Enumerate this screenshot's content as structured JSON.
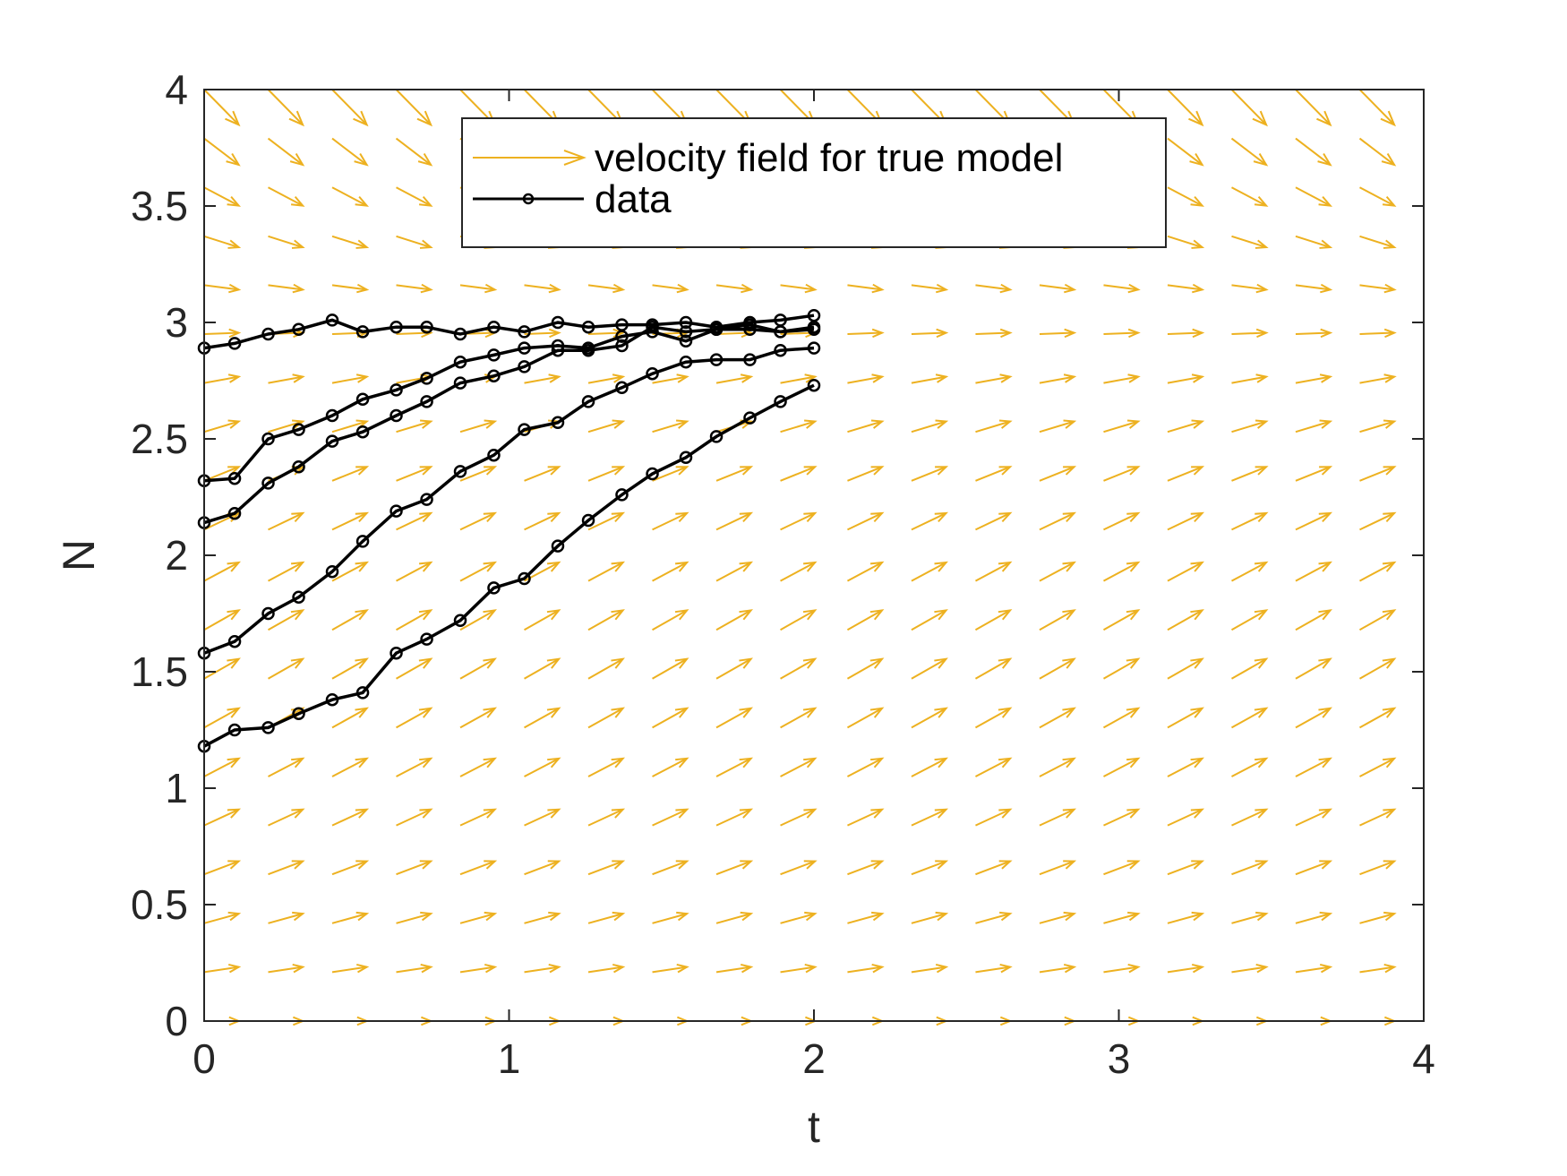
{
  "chart_data": {
    "type": "quiver-line",
    "title": "",
    "xlabel": "t",
    "ylabel": "N",
    "xlim": [
      0,
      4
    ],
    "ylim": [
      0,
      4
    ],
    "xticks": [
      "0",
      "1",
      "2",
      "3",
      "4"
    ],
    "yticks": [
      "0",
      "0.5",
      "1",
      "1.5",
      "2",
      "2.5",
      "3",
      "3.5",
      "4"
    ],
    "grid": false,
    "legend_position": "top-center",
    "legend": [
      {
        "label": "velocity field for true model",
        "kind": "arrow"
      },
      {
        "label": "data",
        "kind": "line-marker"
      }
    ],
    "velocity_field": {
      "model": "logistic",
      "growth_rate": 1.0,
      "carrying_capacity": 3.0,
      "t_values": [
        0,
        0.21,
        0.42,
        0.63,
        0.84,
        1.05,
        1.26,
        1.47,
        1.68,
        1.89,
        2.11,
        2.32,
        2.53,
        2.74,
        2.95,
        3.16,
        3.37,
        3.58,
        3.79
      ],
      "n_values": [
        0,
        0.21,
        0.42,
        0.63,
        0.84,
        1.05,
        1.26,
        1.47,
        1.68,
        1.89,
        2.11,
        2.32,
        2.53,
        2.74,
        2.95,
        3.16,
        3.37,
        3.58,
        3.79,
        4.0
      ],
      "color": "#EDB120"
    },
    "line_color": "#000000",
    "series": [
      {
        "x": [
          0,
          0.1,
          0.21,
          0.31,
          0.42,
          0.52,
          0.63,
          0.73,
          0.84,
          0.95,
          1.05,
          1.16,
          1.26,
          1.37,
          1.47,
          1.58,
          1.68,
          1.79,
          1.89,
          2.0
        ],
        "y": [
          2.89,
          2.91,
          2.95,
          2.97,
          3.01,
          2.96,
          2.98,
          2.98,
          2.95,
          2.98,
          2.96,
          3.0,
          2.98,
          2.99,
          2.99,
          3.0,
          2.98,
          3.0,
          3.01,
          3.03
        ]
      },
      {
        "x": [
          0,
          0.1,
          0.21,
          0.31,
          0.42,
          0.52,
          0.63,
          0.73,
          0.84,
          0.95,
          1.05,
          1.16,
          1.26,
          1.37,
          1.47,
          1.58,
          1.68,
          1.79,
          1.89,
          2.0
        ],
        "y": [
          2.32,
          2.33,
          2.5,
          2.54,
          2.6,
          2.67,
          2.71,
          2.76,
          2.83,
          2.86,
          2.89,
          2.9,
          2.89,
          2.94,
          2.96,
          2.92,
          2.97,
          2.97,
          2.96,
          2.97
        ]
      },
      {
        "x": [
          0,
          0.1,
          0.21,
          0.31,
          0.42,
          0.52,
          0.63,
          0.73,
          0.84,
          0.95,
          1.05,
          1.16,
          1.26,
          1.37,
          1.47,
          1.58,
          1.68,
          1.79,
          1.89,
          2.0
        ],
        "y": [
          2.14,
          2.18,
          2.31,
          2.38,
          2.49,
          2.53,
          2.6,
          2.66,
          2.74,
          2.77,
          2.81,
          2.88,
          2.88,
          2.9,
          2.98,
          2.96,
          2.97,
          2.99,
          2.96,
          2.98
        ]
      },
      {
        "x": [
          0,
          0.1,
          0.21,
          0.31,
          0.42,
          0.52,
          0.63,
          0.73,
          0.84,
          0.95,
          1.05,
          1.16,
          1.26,
          1.37,
          1.47,
          1.58,
          1.68,
          1.79,
          1.89,
          2.0
        ],
        "y": [
          1.58,
          1.63,
          1.75,
          1.82,
          1.93,
          2.06,
          2.19,
          2.24,
          2.36,
          2.43,
          2.54,
          2.57,
          2.66,
          2.72,
          2.78,
          2.83,
          2.84,
          2.84,
          2.88,
          2.89
        ]
      },
      {
        "x": [
          0,
          0.1,
          0.21,
          0.31,
          0.42,
          0.52,
          0.63,
          0.73,
          0.84,
          0.95,
          1.05,
          1.16,
          1.26,
          1.37,
          1.47,
          1.58,
          1.68,
          1.79,
          1.89,
          2.0
        ],
        "y": [
          1.18,
          1.25,
          1.26,
          1.32,
          1.38,
          1.41,
          1.58,
          1.64,
          1.72,
          1.86,
          1.9,
          2.04,
          2.15,
          2.26,
          2.35,
          2.42,
          2.51,
          2.59,
          2.66,
          2.73
        ]
      }
    ]
  }
}
